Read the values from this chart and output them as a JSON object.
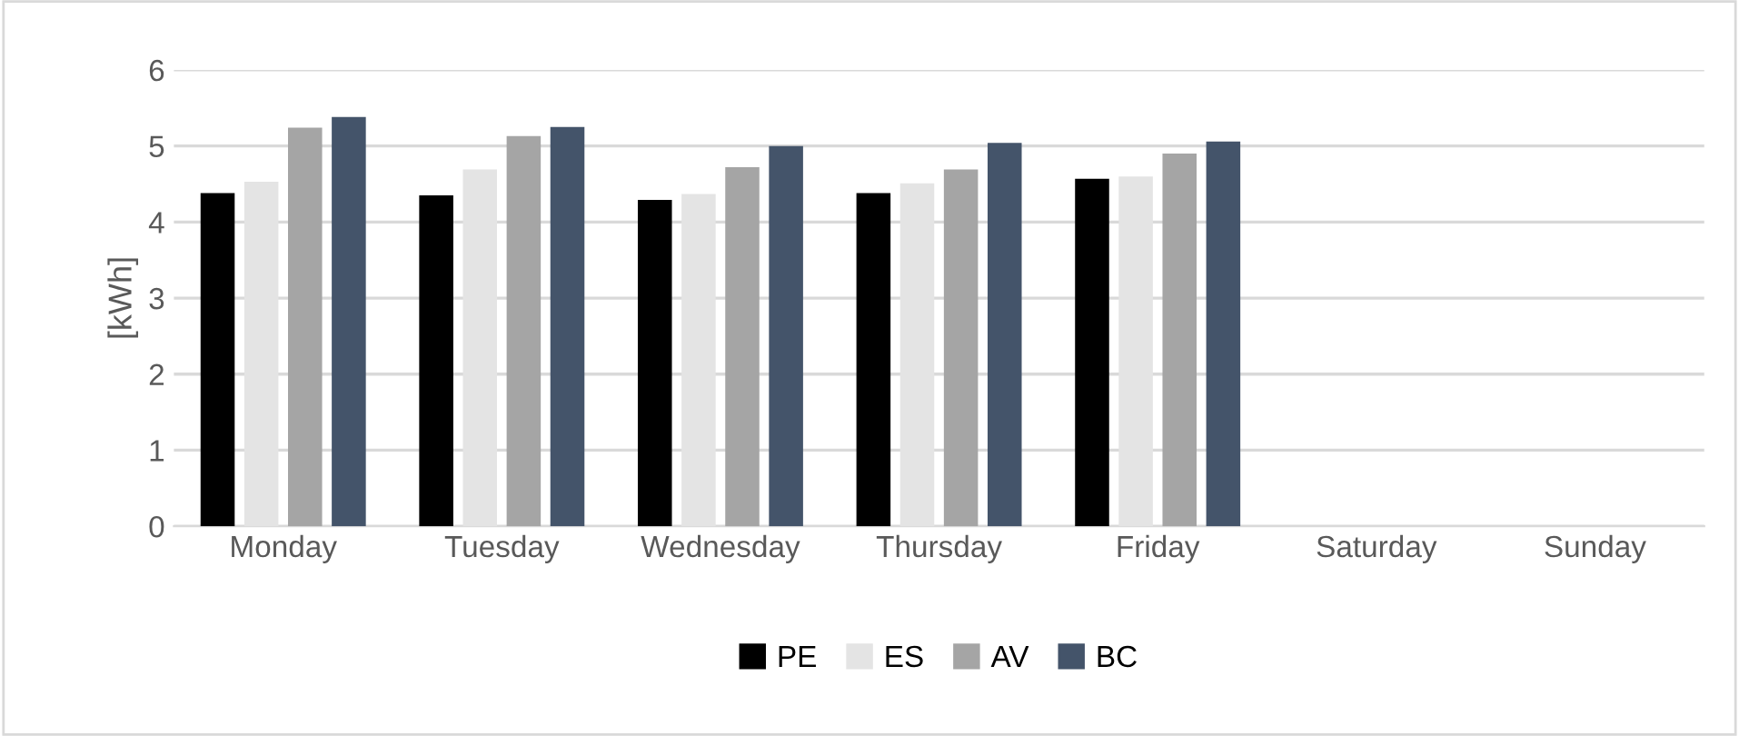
{
  "chart_data": {
    "type": "bar",
    "ylabel": "[kWh]",
    "categories": [
      "Monday",
      "Tuesday",
      "Wednesday",
      "Thursday",
      "Friday",
      "Saturday",
      "Sunday"
    ],
    "series": [
      {
        "name": "PE",
        "color": "#000000",
        "values": [
          4.38,
          4.35,
          4.29,
          4.38,
          4.57,
          null,
          null
        ]
      },
      {
        "name": "ES",
        "color": "#e4e4e4",
        "values": [
          4.53,
          4.69,
          4.37,
          4.51,
          4.6,
          null,
          null
        ]
      },
      {
        "name": "AV",
        "color": "#a5a5a5",
        "values": [
          5.24,
          5.13,
          4.72,
          4.69,
          4.9,
          null,
          null
        ]
      },
      {
        "name": "BC",
        "color": "#44546a",
        "values": [
          5.38,
          5.25,
          5.0,
          5.04,
          5.06,
          null,
          null
        ]
      }
    ],
    "ylim": [
      0,
      6
    ],
    "yticks": [
      0,
      1,
      2,
      3,
      4,
      5,
      6
    ],
    "grid": "y",
    "legend": "bottom"
  }
}
